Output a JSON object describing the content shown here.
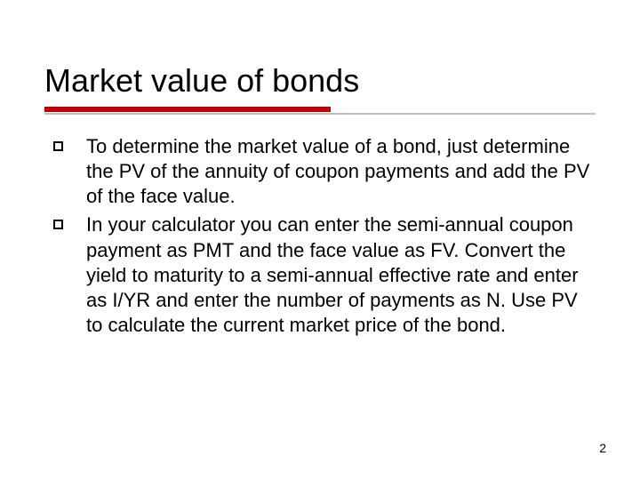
{
  "slide": {
    "title": "Market value of bonds",
    "bullets": [
      {
        "text": "To determine the market value of a bond, just determine the PV of the annuity of coupon payments and add the PV of the face value."
      },
      {
        "text": "In your calculator you can enter the semi-annual coupon payment as PMT and the face value as FV. Convert the yield to maturity to a semi-annual effective rate and enter as I/YR and enter the number of payments as N. Use PV to calculate the current market price of the bond."
      }
    ],
    "page_number": "2"
  },
  "style": {
    "background_color": "#ffffff",
    "title_fontsize": 36,
    "title_color": "#000000",
    "body_fontsize": 22,
    "body_color": "#000000",
    "rule_color_primary": "#c00000",
    "rule_color_secondary": "#bfbfbf",
    "bullet_marker": "hollow-square",
    "bullet_border_color": "#000000",
    "font_family": "Verdana"
  }
}
